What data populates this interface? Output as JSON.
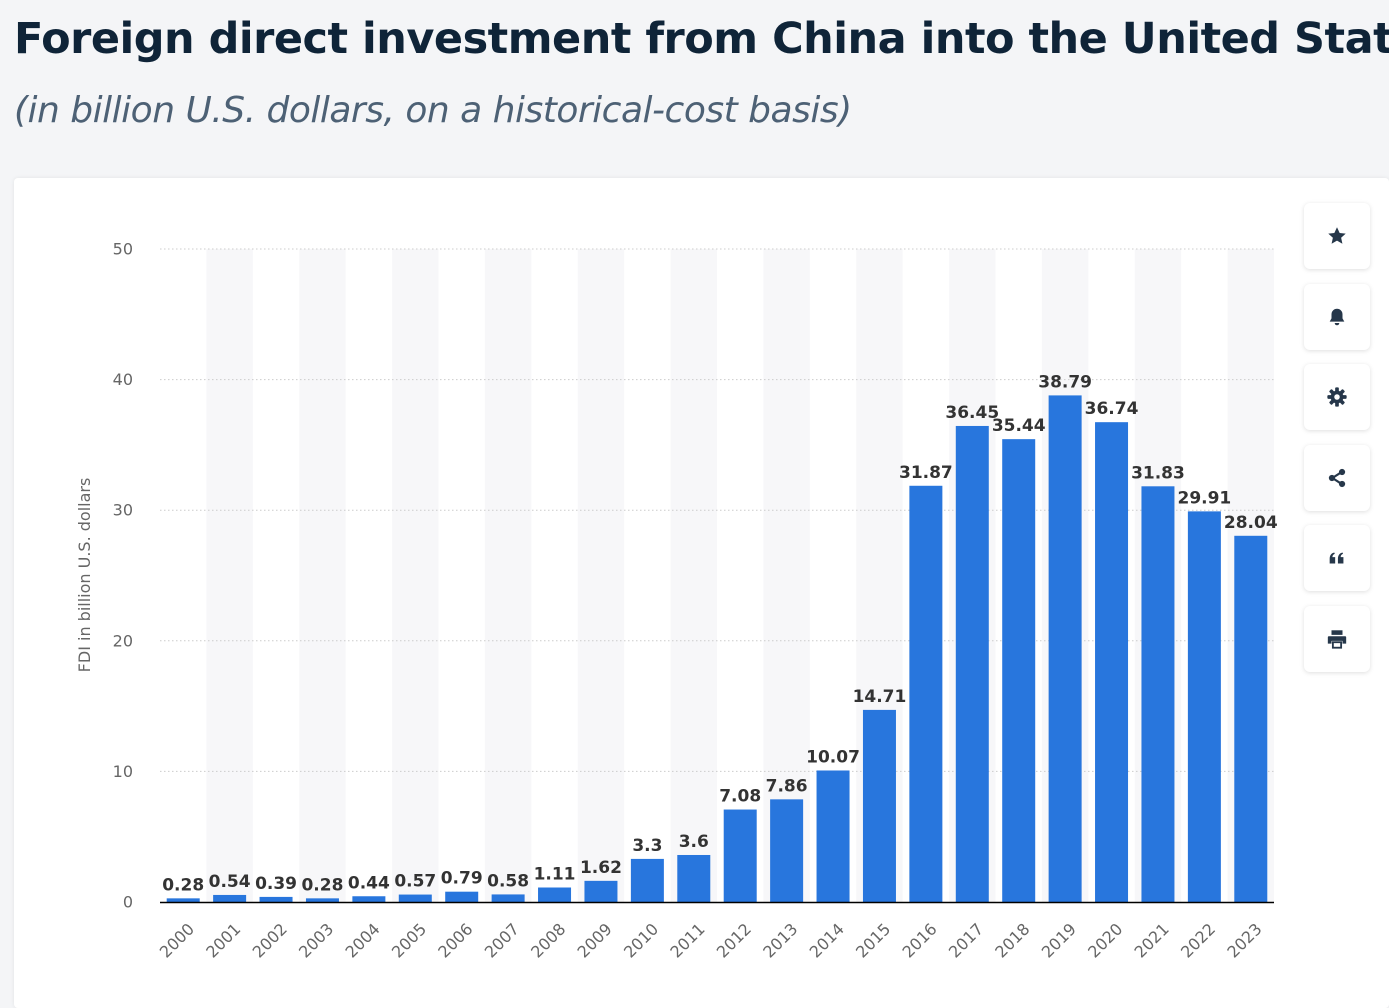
{
  "header": {
    "title": "Foreign direct investment from China into the United States",
    "subtitle": "(in billion U.S. dollars, on a historical-cost basis)"
  },
  "toolbar": {
    "buttons": [
      {
        "name": "favorite-button",
        "icon": "star-icon"
      },
      {
        "name": "notification-button",
        "icon": "bell-icon"
      },
      {
        "name": "settings-button",
        "icon": "gear-icon"
      },
      {
        "name": "share-button",
        "icon": "share-icon"
      },
      {
        "name": "cite-button",
        "icon": "quote-icon"
      },
      {
        "name": "print-button",
        "icon": "printer-icon"
      }
    ]
  },
  "colors": {
    "bar": "#2876dd",
    "band": "#f7f7f9",
    "grid": "#cccccc",
    "axis": "#000000",
    "tick_text": "#666666",
    "label_text": "#333333",
    "icon": "#26374a"
  },
  "chart_data": {
    "type": "bar",
    "title": "Foreign direct investment from China into the United States",
    "subtitle": "(in billion U.S. dollars, on a historical-cost basis)",
    "xlabel": "",
    "ylabel": "FDI in billion U.S. dollars",
    "ylim": [
      0,
      50
    ],
    "yticks": [
      0,
      10,
      20,
      30,
      40,
      50
    ],
    "grid": true,
    "categories": [
      "2000",
      "2001",
      "2002",
      "2003",
      "2004",
      "2005",
      "2006",
      "2007",
      "2008",
      "2009",
      "2010",
      "2011",
      "2012",
      "2013",
      "2014",
      "2015",
      "2016",
      "2017",
      "2018",
      "2019",
      "2020",
      "2021",
      "2022",
      "2023"
    ],
    "values": [
      0.28,
      0.54,
      0.39,
      0.28,
      0.44,
      0.57,
      0.79,
      0.58,
      1.11,
      1.62,
      3.3,
      3.6,
      7.08,
      7.86,
      10.07,
      14.71,
      31.87,
      36.45,
      35.44,
      38.79,
      36.74,
      31.83,
      29.91,
      28.04
    ],
    "value_labels": [
      "0.28",
      "0.54",
      "0.39",
      "0.28",
      "0.44",
      "0.57",
      "0.79",
      "0.58",
      "1.11",
      "1.62",
      "3.3",
      "3.6",
      "7.08",
      "7.86",
      "10.07",
      "14.71",
      "31.87",
      "36.45",
      "35.44",
      "38.79",
      "36.74",
      "31.83",
      "29.91",
      "28.04"
    ]
  }
}
